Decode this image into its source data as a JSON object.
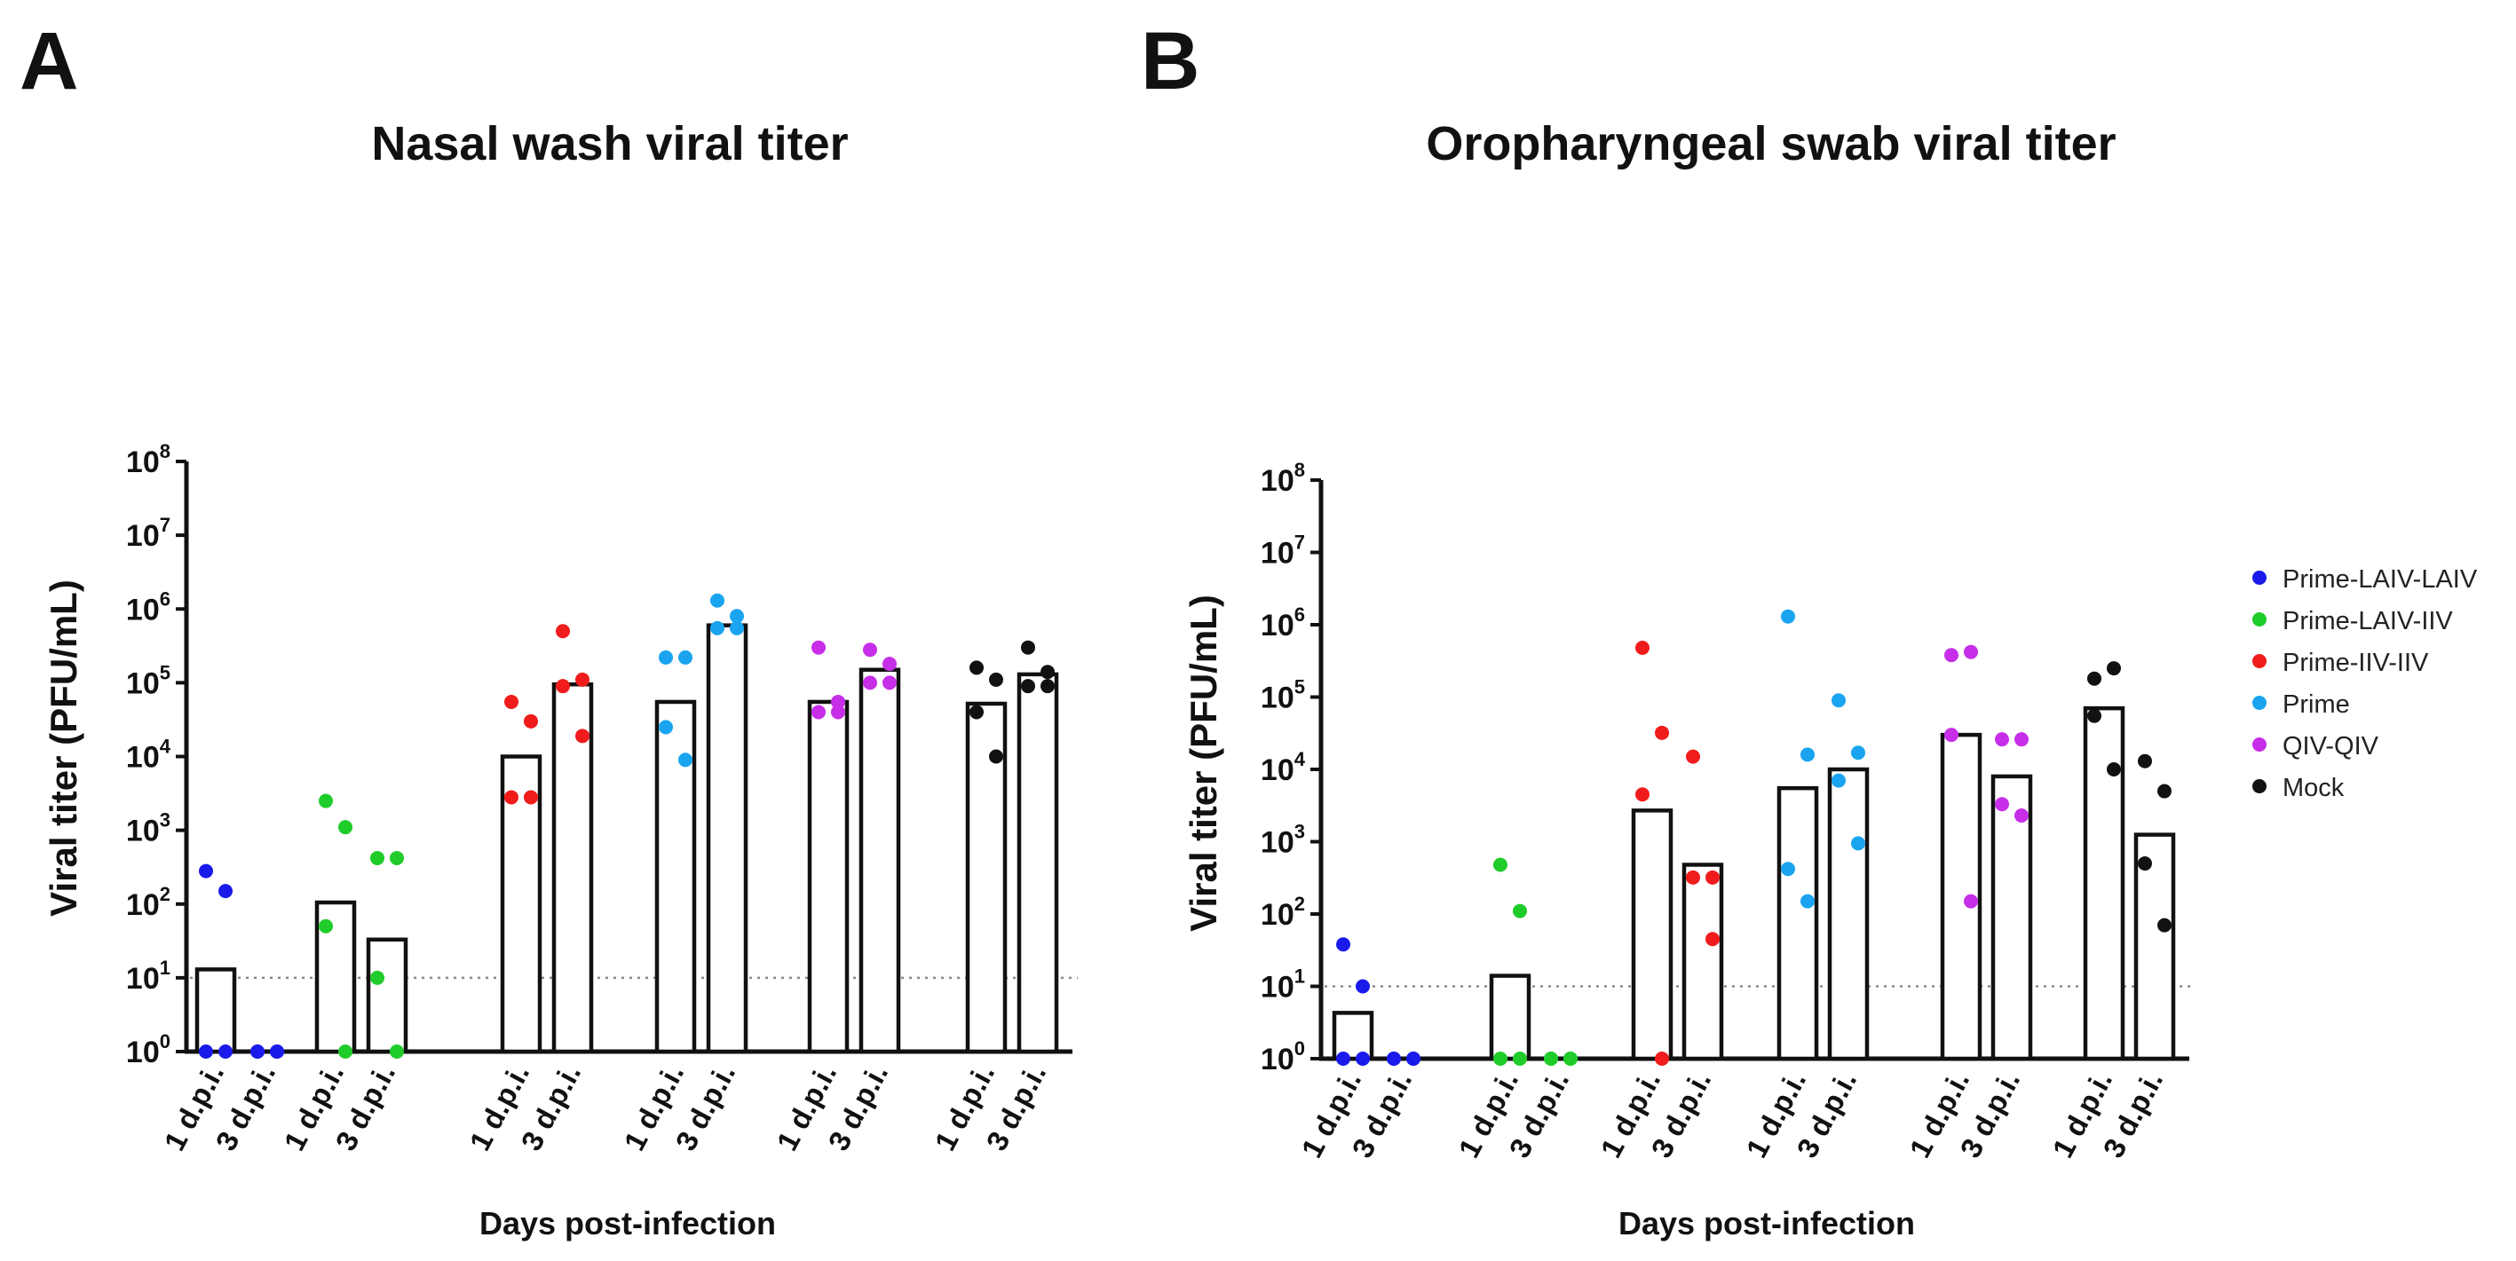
{
  "panel_letters": [
    "A",
    "B"
  ],
  "chart_data": [
    {
      "type": "bar",
      "panel": "A",
      "title": "Nasal wash viral titer",
      "xlabel": "Days post-infection",
      "ylabel": "Viral titer (PFU/mL)",
      "yscale": "log10",
      "ylim": [
        1,
        100000000
      ],
      "ytick_base": "10",
      "ytick_exponents": [
        "0",
        "1",
        "2",
        "3",
        "4",
        "5",
        "6",
        "7",
        "8"
      ],
      "detection_limit": 10,
      "categories": [
        "1 d.p.i.",
        "3 d.p.i.",
        "1 d.p.i.",
        "3 d.p.i.",
        "1 d.p.i.",
        "3 d.p.i.",
        "1 d.p.i.",
        "3 d.p.i.",
        "1 d.p.i.",
        "3 d.p.i.",
        "1 d.p.i.",
        "3 d.p.i."
      ],
      "series": [
        {
          "name": "Prime-LAIV-LAIV",
          "color": "#1a1aeb",
          "bars": [
            13,
            1
          ],
          "points": [
            [
              280,
              150,
              1,
              1
            ],
            [
              1,
              1,
              1,
              1
            ]
          ]
        },
        {
          "name": "Prime-LAIV-IIV",
          "color": "#1fcc2a",
          "bars": [
            105,
            33
          ],
          "points": [
            [
              2500,
              1100,
              50,
              1
            ],
            [
              420,
              420,
              10,
              1
            ]
          ]
        },
        {
          "name": "Prime-IIV-IIV",
          "color": "#f01c1c",
          "bars": [
            10000,
            95000
          ],
          "points": [
            [
              55000,
              30000,
              2800,
              2800
            ],
            [
              500000,
              110000,
              90000,
              19000
            ]
          ]
        },
        {
          "name": "Prime",
          "color": "#1aa4f0",
          "bars": [
            55000,
            600000
          ],
          "points": [
            [
              220000,
              220000,
              25000,
              9000
            ],
            [
              1300000,
              800000,
              550000,
              550000
            ]
          ]
        },
        {
          "name": "QIV-QIV",
          "color": "#c62ee8",
          "bars": [
            55000,
            150000
          ],
          "points": [
            [
              300000,
              55000,
              40000,
              40000
            ],
            [
              280000,
              180000,
              100000,
              100000
            ]
          ]
        },
        {
          "name": "Mock",
          "color": "#111111",
          "bars": [
            52000,
            130000
          ],
          "points": [
            [
              160000,
              110000,
              40000,
              10000
            ],
            [
              300000,
              140000,
              90000,
              90000
            ]
          ]
        }
      ]
    },
    {
      "type": "bar",
      "panel": "B",
      "title": "Oropharyngeal swab viral titer",
      "xlabel": "Days post-infection",
      "ylabel": "Viral titer (PFU/mL)",
      "yscale": "log10",
      "ylim": [
        1,
        100000000
      ],
      "ytick_base": "10",
      "ytick_exponents": [
        "0",
        "1",
        "2",
        "3",
        "4",
        "5",
        "6",
        "7",
        "8"
      ],
      "detection_limit": 10,
      "categories": [
        "1 d.p.i.",
        "3 d.p.i.",
        "1 d.p.i.",
        "3 d.p.i.",
        "1 d.p.i.",
        "3 d.p.i.",
        "1 d.p.i.",
        "3 d.p.i.",
        "1 d.p.i.",
        "3 d.p.i.",
        "1 d.p.i.",
        "3 d.p.i."
      ],
      "series": [
        {
          "name": "Prime-LAIV-LAIV",
          "color": "#1a1aeb",
          "bars": [
            4.3,
            1
          ],
          "points": [
            [
              38,
              10,
              1,
              1
            ],
            [
              1,
              1,
              1,
              1
            ]
          ]
        },
        {
          "name": "Prime-LAIV-IIV",
          "color": "#1fcc2a",
          "bars": [
            14,
            1
          ],
          "points": [
            [
              480,
              110,
              1,
              1
            ],
            [
              1,
              1,
              1,
              1
            ]
          ]
        },
        {
          "name": "Prime-IIV-IIV",
          "color": "#f01c1c",
          "bars": [
            2700,
            480
          ],
          "points": [
            [
              480000,
              32000,
              4500,
              1
            ],
            [
              15000,
              320,
              320,
              45
            ]
          ]
        },
        {
          "name": "Prime",
          "color": "#1aa4f0",
          "bars": [
            5500,
            10000
          ],
          "points": [
            [
              1300000,
              16000,
              420,
              150
            ],
            [
              90000,
              17000,
              7000,
              950
            ]
          ]
        },
        {
          "name": "QIV-QIV",
          "color": "#c62ee8",
          "bars": [
            30000,
            8000
          ],
          "points": [
            [
              380000,
              420000,
              30000,
              150
            ],
            [
              26000,
              26000,
              3300,
              2300
            ]
          ]
        },
        {
          "name": "Mock",
          "color": "#111111",
          "bars": [
            70000,
            1250
          ],
          "points": [
            [
              180000,
              250000,
              55000,
              10000
            ],
            [
              13000,
              5000,
              500,
              70
            ]
          ]
        }
      ]
    }
  ],
  "legend": {
    "items": [
      {
        "label": "Prime-LAIV-LAIV",
        "color": "#1a1aeb"
      },
      {
        "label": "Prime-LAIV-IIV",
        "color": "#1fcc2a"
      },
      {
        "label": "Prime-IIV-IIV",
        "color": "#f01c1c"
      },
      {
        "label": "Prime",
        "color": "#1aa4f0"
      },
      {
        "label": "QIV-QIV",
        "color": "#c62ee8"
      },
      {
        "label": "Mock",
        "color": "#111111"
      }
    ]
  }
}
